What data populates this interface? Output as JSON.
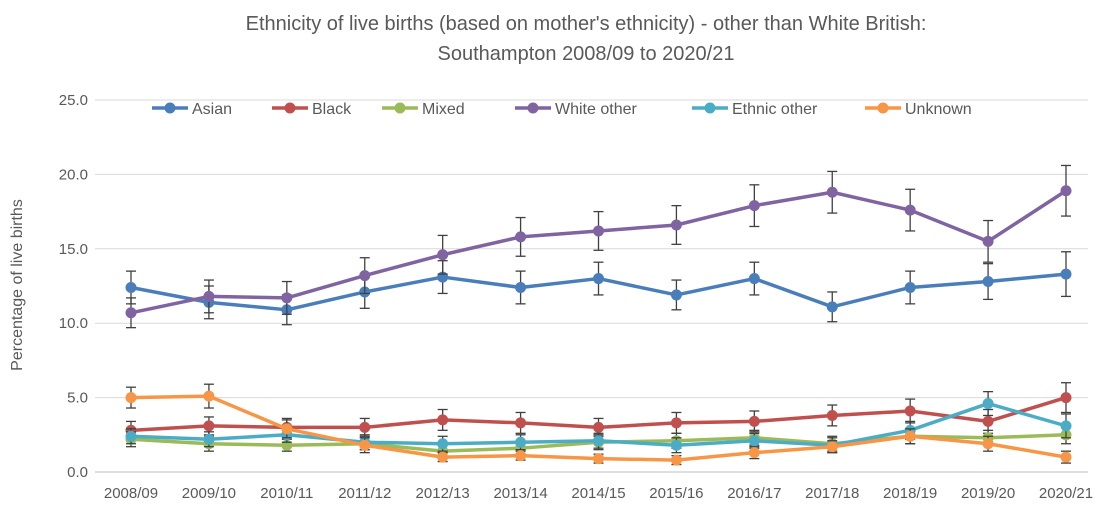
{
  "chart_data": {
    "type": "line",
    "title_line1": "Ethnicity of live births (based on mother's ethnicity) - other than White British:",
    "title_line2": "Southampton 2008/09 to 2020/21",
    "ylabel": "Percentage of live births",
    "xlabel": "",
    "ylim": [
      0,
      25
    ],
    "yticks": [
      "0.0",
      "5.0",
      "10.0",
      "15.0",
      "20.0",
      "25.0"
    ],
    "grid": "horizontal",
    "legend_position": "top",
    "categories": [
      "2008/09",
      "2009/10",
      "2010/11",
      "2011/12",
      "2012/13",
      "2013/14",
      "2014/15",
      "2015/16",
      "2016/17",
      "2017/18",
      "2018/19",
      "2019/20",
      "2020/21"
    ],
    "series": [
      {
        "name": "Asian",
        "color": "#4a7ebb",
        "values": [
          12.4,
          11.4,
          10.9,
          12.1,
          13.1,
          12.4,
          13.0,
          11.9,
          13.0,
          11.1,
          12.4,
          12.8,
          13.3
        ],
        "err": [
          1.1,
          1.1,
          1.0,
          1.1,
          1.1,
          1.1,
          1.1,
          1.0,
          1.1,
          1.0,
          1.1,
          1.2,
          1.5
        ]
      },
      {
        "name": "Black",
        "color": "#c0504d",
        "values": [
          2.8,
          3.1,
          3.0,
          3.0,
          3.5,
          3.3,
          3.0,
          3.3,
          3.4,
          3.8,
          4.1,
          3.4,
          5.0
        ],
        "err": [
          0.6,
          0.6,
          0.6,
          0.6,
          0.7,
          0.7,
          0.6,
          0.7,
          0.7,
          0.7,
          0.8,
          0.8,
          1.0
        ]
      },
      {
        "name": "Mixed",
        "color": "#9bbb59",
        "values": [
          2.2,
          1.9,
          1.8,
          1.9,
          1.4,
          1.6,
          2.0,
          2.1,
          2.3,
          1.9,
          2.4,
          2.3,
          2.5
        ],
        "err": [
          0.5,
          0.5,
          0.4,
          0.4,
          0.4,
          0.4,
          0.5,
          0.5,
          0.5,
          0.5,
          0.5,
          0.5,
          0.6
        ]
      },
      {
        "name": "White other",
        "color": "#8064a2",
        "values": [
          10.7,
          11.8,
          11.7,
          13.2,
          14.6,
          15.8,
          16.2,
          16.6,
          17.9,
          18.8,
          17.6,
          15.5,
          18.9
        ],
        "err": [
          1.0,
          1.1,
          1.1,
          1.2,
          1.3,
          1.3,
          1.3,
          1.3,
          1.4,
          1.4,
          1.4,
          1.4,
          1.7
        ]
      },
      {
        "name": "Ethnic other",
        "color": "#4bacc6",
        "values": [
          2.4,
          2.2,
          2.5,
          2.0,
          1.9,
          2.0,
          2.1,
          1.8,
          2.1,
          1.8,
          2.8,
          4.6,
          3.1
        ],
        "err": [
          0.5,
          0.5,
          0.5,
          0.5,
          0.5,
          0.5,
          0.5,
          0.5,
          0.5,
          0.5,
          0.6,
          0.8,
          0.8
        ]
      },
      {
        "name": "Unknown",
        "color": "#f79646",
        "values": [
          5.0,
          5.1,
          2.9,
          1.8,
          1.0,
          1.1,
          0.9,
          0.8,
          1.3,
          1.7,
          2.4,
          1.9,
          1.0
        ],
        "err": [
          0.7,
          0.8,
          0.6,
          0.5,
          0.3,
          0.3,
          0.3,
          0.3,
          0.4,
          0.4,
          0.5,
          0.5,
          0.4
        ]
      }
    ]
  }
}
